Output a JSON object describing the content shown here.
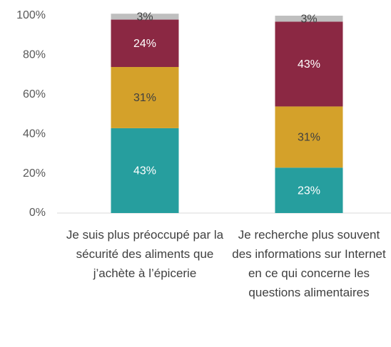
{
  "chart_data": {
    "type": "stacked_bar",
    "categories": [
      "Je suis plus préoccupé par la sécurité des aliments que j’achète à l’épicerie",
      "Je recherche plus souvent des informations sur Internet en ce qui concerne les questions alimentaires"
    ],
    "series": [
      {
        "color": "#269e9e",
        "values": [
          43,
          23
        ],
        "value_labels": [
          "43%",
          "23%"
        ]
      },
      {
        "color": "#d4a12a",
        "values": [
          31,
          31
        ],
        "value_labels": [
          "31%",
          "31%"
        ]
      },
      {
        "color": "#8b2843",
        "values": [
          24,
          43
        ],
        "value_labels": [
          "24%",
          "43%"
        ]
      },
      {
        "color": "#bfbfbf",
        "values": [
          3,
          3
        ],
        "value_labels": [
          "3%",
          "3%"
        ]
      }
    ],
    "ylim": [
      0,
      100
    ],
    "yticks": [
      {
        "value": 0,
        "label": "0%"
      },
      {
        "value": 20,
        "label": "20%"
      },
      {
        "value": 40,
        "label": "40%"
      },
      {
        "value": 60,
        "label": "60%"
      },
      {
        "value": 80,
        "label": "80%"
      },
      {
        "value": 100,
        "label": "100%"
      }
    ],
    "grid": false
  }
}
